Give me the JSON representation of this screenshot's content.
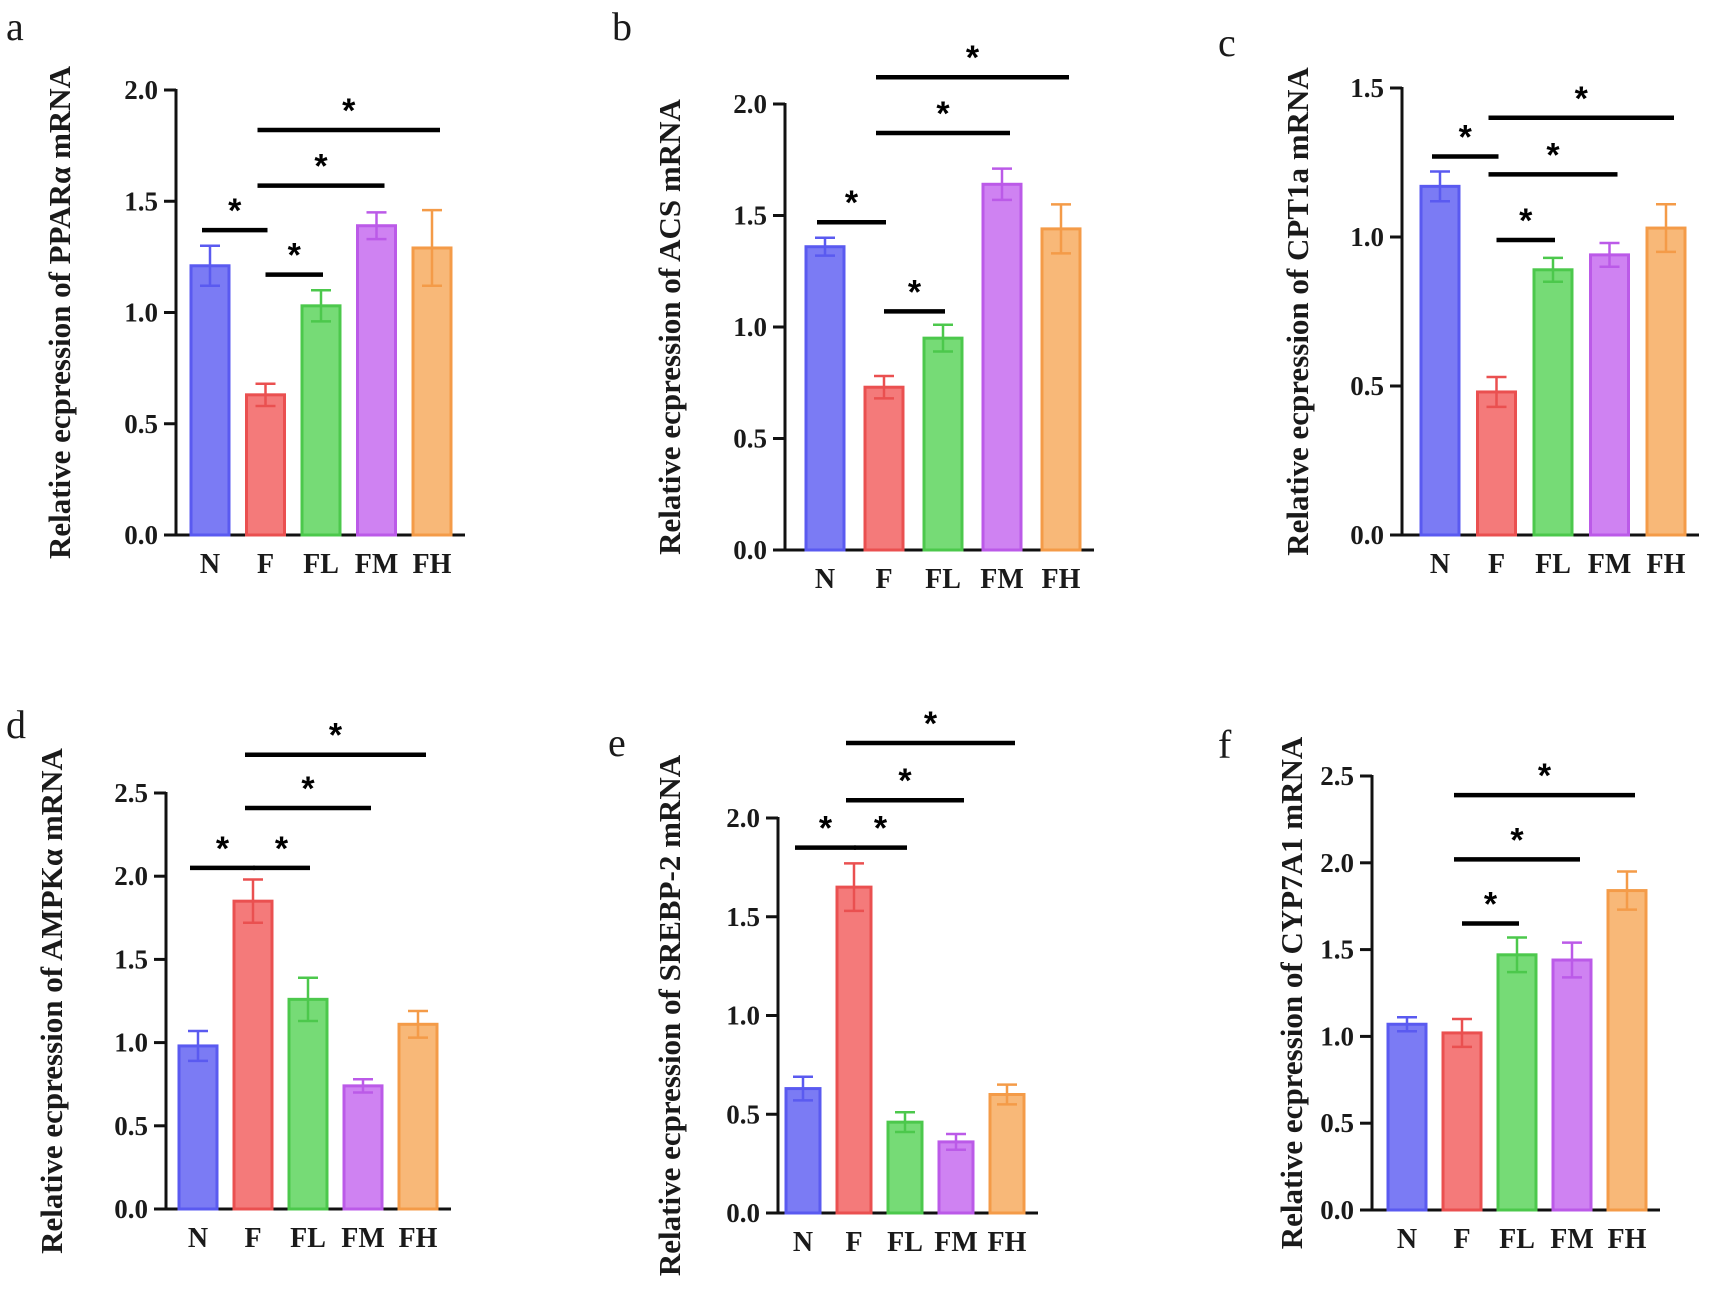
{
  "colors": {
    "N": {
      "fill": "#7b7bf4",
      "stroke": "#5a5af0"
    },
    "F": {
      "fill": "#f47a7a",
      "stroke": "#ea5050"
    },
    "FL": {
      "fill": "#76db76",
      "stroke": "#4cc84c"
    },
    "FM": {
      "fill": "#cf82f2",
      "stroke": "#bb5ae8"
    },
    "FH": {
      "fill": "#f8b878",
      "stroke": "#f49b48"
    }
  },
  "chart_data": [
    {
      "panel": "a",
      "type": "bar",
      "ylabel": "Relative ecpression of PPARα mRNA",
      "categories": [
        "N",
        "F",
        "FL",
        "FM",
        "FH"
      ],
      "values": [
        1.21,
        0.63,
        1.03,
        1.39,
        1.29
      ],
      "errors": [
        0.09,
        0.05,
        0.07,
        0.06,
        0.17
      ],
      "ylim": [
        0,
        2.0
      ],
      "yticks": [
        "0.0",
        "0.5",
        "1.0",
        "1.5",
        "2.0"
      ],
      "significance": [
        {
          "from": 0,
          "to": 1,
          "y": 1.37,
          "label": "*"
        },
        {
          "from": 1,
          "to": 2,
          "y": 1.17,
          "label": "*"
        },
        {
          "from": 1,
          "to": 3,
          "y": 1.57,
          "label": "*"
        },
        {
          "from": 1,
          "to": 4,
          "y": 1.82,
          "label": "*"
        }
      ]
    },
    {
      "panel": "b",
      "type": "bar",
      "ylabel": "Relative ecpression of ACS mRNA",
      "categories": [
        "N",
        "F",
        "FL",
        "FM",
        "FH"
      ],
      "values": [
        1.36,
        0.73,
        0.95,
        1.64,
        1.44
      ],
      "errors": [
        0.04,
        0.05,
        0.06,
        0.07,
        0.11
      ],
      "ylim": [
        0,
        2.0
      ],
      "yticks": [
        "0.0",
        "0.5",
        "1.0",
        "1.5",
        "2.0"
      ],
      "significance": [
        {
          "from": 0,
          "to": 1,
          "y": 1.47,
          "label": "*"
        },
        {
          "from": 1,
          "to": 2,
          "y": 1.07,
          "label": "*"
        },
        {
          "from": 1,
          "to": 3,
          "y": 1.87,
          "label": "*"
        },
        {
          "from": 1,
          "to": 4,
          "y": 2.12,
          "label": "*"
        }
      ]
    },
    {
      "panel": "c",
      "type": "bar",
      "ylabel": "Relative ecpression of CPT1a mRNA",
      "categories": [
        "N",
        "F",
        "FL",
        "FM",
        "FH"
      ],
      "values": [
        1.17,
        0.48,
        0.89,
        0.94,
        1.03
      ],
      "errors": [
        0.05,
        0.05,
        0.04,
        0.04,
        0.08
      ],
      "ylim": [
        0,
        1.5
      ],
      "yticks": [
        "0.0",
        "0.5",
        "1.0",
        "1.5"
      ],
      "significance": [
        {
          "from": 0,
          "to": 1,
          "y": 1.27,
          "label": "*"
        },
        {
          "from": 1,
          "to": 2,
          "y": 0.99,
          "label": "*"
        },
        {
          "from": 1,
          "to": 3,
          "y": 1.21,
          "label": "*"
        },
        {
          "from": 1,
          "to": 4,
          "y": 1.4,
          "label": "*"
        }
      ]
    },
    {
      "panel": "d",
      "type": "bar",
      "ylabel": "Relative ecpression of AMPKα mRNA",
      "categories": [
        "N",
        "F",
        "FL",
        "FM",
        "FH"
      ],
      "values": [
        0.98,
        1.85,
        1.26,
        0.74,
        1.11
      ],
      "errors": [
        0.09,
        0.13,
        0.13,
        0.04,
        0.08
      ],
      "ylim": [
        0,
        2.5
      ],
      "yticks": [
        "0.0",
        "0.5",
        "1.0",
        "1.5",
        "2.0",
        "2.5"
      ],
      "significance": [
        {
          "from": 0,
          "to": 1,
          "y": 2.05,
          "label": "*"
        },
        {
          "from": 1,
          "to": 2,
          "y": 2.05,
          "label": "*"
        },
        {
          "from": 1,
          "to": 3,
          "y": 2.41,
          "label": "*"
        },
        {
          "from": 1,
          "to": 4,
          "y": 2.73,
          "label": "*"
        }
      ]
    },
    {
      "panel": "e",
      "type": "bar",
      "ylabel": "Relative ecpression of SREBP-2 mRNA",
      "categories": [
        "N",
        "F",
        "FL",
        "FM",
        "FH"
      ],
      "values": [
        0.63,
        1.65,
        0.46,
        0.36,
        0.6
      ],
      "errors": [
        0.06,
        0.12,
        0.05,
        0.04,
        0.05
      ],
      "ylim": [
        0,
        2.0
      ],
      "yticks": [
        "0.0",
        "0.5",
        "1.0",
        "1.5",
        "2.0"
      ],
      "significance": [
        {
          "from": 0,
          "to": 1,
          "y": 1.85,
          "label": "*"
        },
        {
          "from": 1,
          "to": 2,
          "y": 1.85,
          "label": "*"
        },
        {
          "from": 1,
          "to": 3,
          "y": 2.09,
          "label": "*"
        },
        {
          "from": 1,
          "to": 4,
          "y": 2.38,
          "label": "*"
        }
      ]
    },
    {
      "panel": "f",
      "type": "bar",
      "ylabel": "Relative ecpression of CYP7A1 mRNA",
      "categories": [
        "N",
        "F",
        "FL",
        "FM",
        "FH"
      ],
      "values": [
        1.07,
        1.02,
        1.47,
        1.44,
        1.84
      ],
      "errors": [
        0.04,
        0.08,
        0.1,
        0.1,
        0.11
      ],
      "ylim": [
        0,
        2.5
      ],
      "yticks": [
        "0.0",
        "0.5",
        "1.0",
        "1.5",
        "2.0",
        "2.5"
      ],
      "significance": [
        {
          "from": 1,
          "to": 2,
          "y": 1.65,
          "label": "*"
        },
        {
          "from": 1,
          "to": 3,
          "y": 2.02,
          "label": "*"
        },
        {
          "from": 1,
          "to": 4,
          "y": 2.39,
          "label": "*"
        }
      ]
    }
  ]
}
